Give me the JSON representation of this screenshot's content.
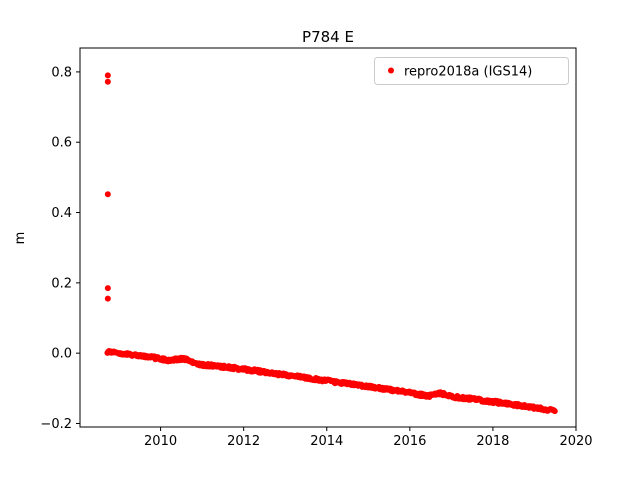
{
  "chart_data": {
    "type": "scatter",
    "title": "P784 E",
    "xlabel": "",
    "ylabel": "m",
    "xlim": [
      2008.06,
      2020.0
    ],
    "ylim": [
      -0.21,
      0.868
    ],
    "xticks": [
      2010,
      2012,
      2014,
      2016,
      2018,
      2020
    ],
    "xtick_labels": [
      "2010",
      "2012",
      "2014",
      "2016",
      "2018",
      "2020"
    ],
    "yticks": [
      -0.2,
      0.0,
      0.2,
      0.4,
      0.6,
      0.8
    ],
    "ytick_labels": [
      "−0.2",
      "0.0",
      "0.2",
      "0.4",
      "0.6",
      "0.8"
    ],
    "grid": false,
    "legend": {
      "location": "upper right",
      "border_color": "#cccccc",
      "background": "#ffffff"
    },
    "series": [
      {
        "name": "repro2018a (IGS14)",
        "color": "#ff0000",
        "marker": "point",
        "marker_radius_px": 3,
        "outliers": [
          [
            2008.73,
            0.79
          ],
          [
            2008.73,
            0.772
          ],
          [
            2008.73,
            0.452
          ],
          [
            2008.73,
            0.185
          ],
          [
            2008.73,
            0.155
          ]
        ],
        "trend_anchors": [
          [
            2008.72,
            0.004
          ],
          [
            2009.0,
            0.0
          ],
          [
            2009.6,
            -0.008
          ],
          [
            2010.2,
            -0.02
          ],
          [
            2010.55,
            -0.016
          ],
          [
            2011.0,
            -0.033
          ],
          [
            2011.6,
            -0.04
          ],
          [
            2012.3,
            -0.05
          ],
          [
            2013.0,
            -0.062
          ],
          [
            2013.8,
            -0.075
          ],
          [
            2014.6,
            -0.088
          ],
          [
            2015.3,
            -0.1
          ],
          [
            2016.0,
            -0.112
          ],
          [
            2016.45,
            -0.123
          ],
          [
            2016.7,
            -0.113
          ],
          [
            2017.1,
            -0.125
          ],
          [
            2017.8,
            -0.135
          ],
          [
            2018.6,
            -0.148
          ],
          [
            2019.2,
            -0.158
          ],
          [
            2019.5,
            -0.165
          ]
        ],
        "points_per_year": 52,
        "noise_amplitude": 0.004
      }
    ]
  }
}
